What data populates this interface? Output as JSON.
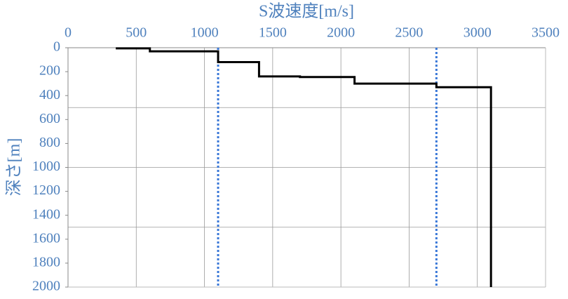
{
  "chart_data": {
    "type": "line",
    "xlabel": "S波速度[m/s]",
    "ylabel": "深さ[m]",
    "series": [
      {
        "color": "#000000",
        "x": [
          350,
          600,
          600,
          1100,
          1100,
          1400,
          1400,
          1700,
          1700,
          2100,
          2100,
          2700,
          2700,
          3100,
          3100
        ],
        "values": [
          5,
          5,
          30,
          30,
          120,
          120,
          240,
          240,
          245,
          245,
          300,
          300,
          330,
          330,
          2000
        ]
      }
    ],
    "xlim": [
      0,
      3500
    ],
    "xticks": [
      0,
      500,
      1000,
      1500,
      2000,
      2500,
      3000,
      3500
    ],
    "ylim": [
      0,
      2000
    ],
    "yticks": [
      0,
      200,
      400,
      600,
      800,
      1000,
      1200,
      1400,
      1600,
      1800,
      2000
    ],
    "y_inverted": true,
    "x_axis_position": "top",
    "y_gridlines": [
      500,
      1000,
      1500
    ],
    "grid": true,
    "reference_lines_x": [
      1100,
      2700
    ],
    "reference_color": "#3a78d8",
    "label_color": "#4f81bd"
  }
}
